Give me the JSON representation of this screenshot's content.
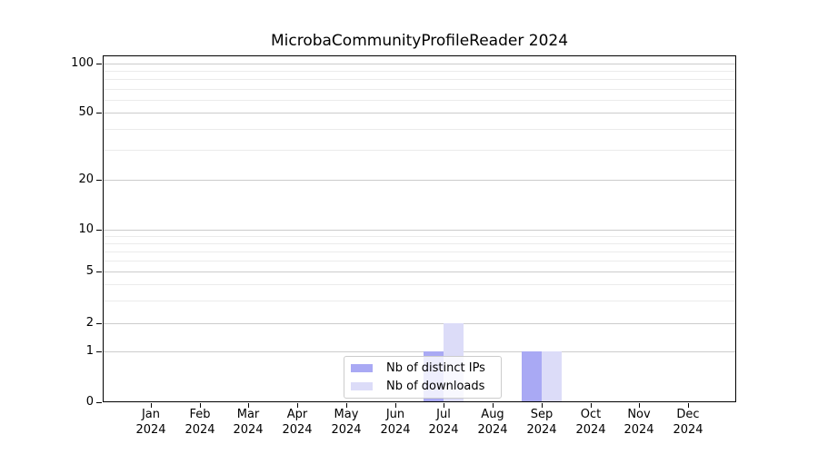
{
  "chart_data": {
    "type": "bar",
    "title": "MicrobaCommunityProfileReader 2024",
    "x_months": [
      "Jan",
      "Feb",
      "Mar",
      "Apr",
      "May",
      "Jun",
      "Jul",
      "Aug",
      "Sep",
      "Oct",
      "Nov",
      "Dec"
    ],
    "x_year": "2024",
    "series": [
      {
        "name": "Nb of distinct IPs",
        "color": "#a9a9f4",
        "values": [
          0,
          0,
          0,
          0,
          0,
          0,
          1,
          0,
          1,
          0,
          0,
          0
        ]
      },
      {
        "name": "Nb of downloads",
        "color": "#dcdcf8",
        "values": [
          0,
          0,
          0,
          0,
          0,
          0,
          2,
          0,
          1,
          0,
          0,
          0
        ]
      }
    ],
    "y_axis": {
      "scale": "symlog",
      "range": [
        0,
        100
      ],
      "tick_values": [
        0,
        1,
        2,
        5,
        10,
        20,
        50,
        100
      ],
      "minor_gridline_values": [
        3,
        4,
        6,
        7,
        8,
        9,
        30,
        40,
        60,
        70,
        80,
        90
      ]
    },
    "grid": true,
    "legend": {
      "position": "lower-center-inside"
    },
    "colors": {
      "axis": "#000000",
      "grid_major": "#cccccc",
      "grid_minor": "#ebebeb",
      "background": "#ffffff"
    }
  }
}
